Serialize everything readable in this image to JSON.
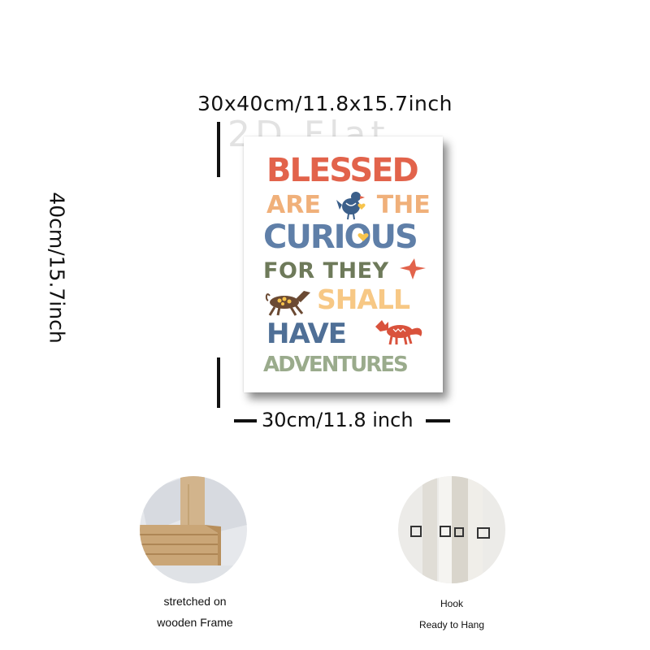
{
  "dimensions": {
    "top": "30x40cm/11.8x15.7inch",
    "left": "40cm/15.7inch",
    "bottom": "30cm/11.8 inch"
  },
  "watermark": "2D Flat",
  "poster": {
    "lines": [
      "BLESSED",
      "ARE",
      "THE",
      "CURIOUS",
      "FOR THEY",
      "SHALL",
      "HAVE",
      "ADVENTURES"
    ],
    "colors": {
      "blessed": "#e2634b",
      "are_the": "#f0b07a",
      "curious": "#5f7fa8",
      "for_they": "#6e7a5a",
      "shall": "#f7c885",
      "have": "#4f6f96",
      "adventures": "#9aab8c"
    },
    "icons": [
      "bird-icon",
      "heart-icon",
      "flying-bird-icon",
      "horse-icon",
      "fox-icon"
    ]
  },
  "features": [
    {
      "caption_lines": [
        "stretched on",
        "wooden Frame"
      ],
      "icon": "wood-frame-corner"
    },
    {
      "caption_lines": [
        "Hook",
        "Ready to Hang"
      ],
      "icon": "hooks"
    }
  ]
}
